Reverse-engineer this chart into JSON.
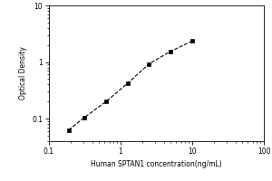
{
  "x": [
    0.188,
    0.313,
    0.625,
    1.25,
    2.5,
    5.0,
    10.0
  ],
  "y": [
    0.063,
    0.105,
    0.2,
    0.42,
    0.93,
    1.55,
    2.35
  ],
  "xlabel": "Human SPTAN1 concentration(ng/mL)",
  "ylabel": "Optical Density",
  "xlim": [
    0.1,
    100
  ],
  "ylim": [
    0.04,
    10
  ],
  "xticks": [
    0.1,
    1,
    10,
    100
  ],
  "xtick_labels": [
    "0.1",
    "1",
    "10",
    "100"
  ],
  "yticks": [
    0.1,
    1,
    10
  ],
  "ytick_labels": [
    "0.1",
    "1",
    "10"
  ],
  "marker": "s",
  "marker_color": "black",
  "marker_size": 3.0,
  "line_style": "--",
  "line_color": "black",
  "line_width": 0.8,
  "background_color": "#ffffff",
  "font_size_label": 5.5,
  "font_size_tick": 5.5
}
